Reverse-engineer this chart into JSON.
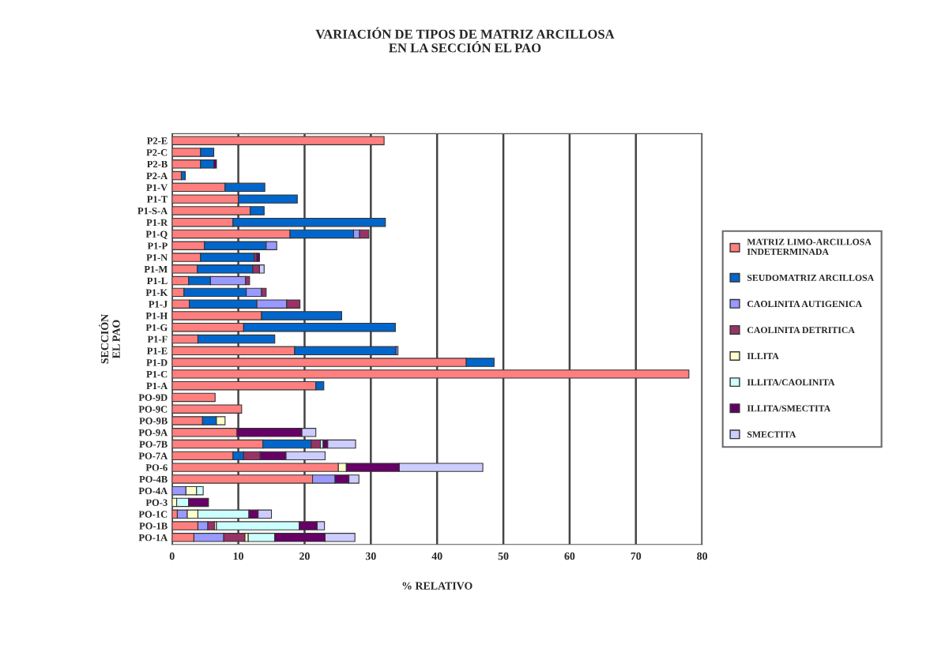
{
  "chart_data": {
    "type": "bar",
    "orientation": "horizontal",
    "stacked": true,
    "title": "VARIACIÓN DE TIPOS DE MATRIZ ARCILLOSA\nEN LA SECCIÓN EL PAO",
    "xlabel": "% RELATIVO",
    "ylabel": "SECCIÓN\nEL PAO",
    "categories": [
      "P2-E",
      "P2-C",
      "P2-B",
      "P2-A",
      "P1-V",
      "P1-T",
      "P1-S-A",
      "P1-R",
      "P1-Q",
      "P1-P",
      "P1-N",
      "P1-M",
      "P1-L",
      "P1-K",
      "P1-J",
      "P1-H",
      "P1-G",
      "P1-F",
      "P1-E",
      "P1-D",
      "P1-C",
      "P1-A",
      "PO-9D",
      "PO-9C",
      "PO-9B",
      "PO-9A",
      "PO-7B",
      "PO-7A",
      "PO-6",
      "PO-4B",
      "PO-4A",
      "PO-3",
      "PO-1C",
      "PO-1B",
      "PO-1A"
    ],
    "xlim": [
      0,
      80
    ],
    "xticks": [
      0,
      10,
      20,
      30,
      40,
      50,
      60,
      70,
      80
    ],
    "grid": "x",
    "legend": "right",
    "series": [
      {
        "name": "MATRIZ LIMO-ARCILLOSA\nINDETERMINADA",
        "color": "#ff7f7f",
        "values": [
          32,
          4.3,
          4.3,
          1.4,
          8.0,
          10.0,
          11.8,
          9.2,
          17.8,
          4.9,
          4.3,
          3.8,
          2.5,
          1.8,
          2.6,
          13.5,
          10.8,
          3.9,
          18.5,
          44.4,
          78.0,
          21.7,
          6.5,
          10.5,
          4.6,
          9.8,
          13.7,
          9.2,
          25.1,
          21.2,
          null,
          null,
          0.8,
          3.9,
          3.3
        ]
      },
      {
        "name": "SEUDOMATRIZ ARCILLOSA",
        "color": "#0066cc",
        "values": [
          null,
          2.0,
          2.0,
          0.6,
          6.0,
          8.9,
          2.1,
          23.0,
          9.6,
          9.3,
          8.1,
          8.4,
          3.3,
          9.4,
          10.2,
          12.1,
          22.9,
          11.6,
          15.3,
          4.2,
          null,
          1.2,
          null,
          null,
          2.1,
          null,
          7.3,
          1.6,
          null,
          null,
          null,
          null,
          null,
          null,
          null
        ]
      },
      {
        "name": "CAOLINITA AUTIGENICA",
        "color": "#9999ff",
        "values": [
          null,
          null,
          null,
          null,
          null,
          null,
          null,
          null,
          0.9,
          1.6,
          null,
          null,
          5.3,
          2.3,
          4.5,
          null,
          null,
          null,
          0.3,
          null,
          null,
          null,
          null,
          null,
          null,
          null,
          null,
          null,
          null,
          3.4,
          2.1,
          null,
          1.5,
          1.5,
          4.5
        ]
      },
      {
        "name": "CAOLINITA DETRITICA",
        "color": "#993366",
        "values": [
          null,
          null,
          null,
          null,
          null,
          null,
          null,
          null,
          1.4,
          null,
          0.4,
          1.0,
          0.6,
          0.7,
          2.0,
          null,
          null,
          null,
          null,
          null,
          null,
          null,
          null,
          null,
          null,
          null,
          1.4,
          2.5,
          null,
          null,
          null,
          null,
          null,
          1.0,
          3.2
        ]
      },
      {
        "name": "ILLITA",
        "color": "#ffffcc",
        "values": [
          null,
          null,
          null,
          null,
          null,
          null,
          null,
          null,
          null,
          null,
          null,
          null,
          null,
          null,
          null,
          null,
          null,
          null,
          null,
          null,
          null,
          null,
          null,
          null,
          1.3,
          null,
          null,
          null,
          1.2,
          null,
          1.6,
          0.7,
          1.6,
          0.3,
          0.5
        ]
      },
      {
        "name": "ILLITA/CAOLINITA",
        "color": "#ccffff",
        "values": [
          null,
          null,
          null,
          null,
          null,
          null,
          null,
          null,
          null,
          null,
          null,
          null,
          null,
          null,
          null,
          null,
          null,
          null,
          null,
          null,
          null,
          null,
          null,
          null,
          null,
          null,
          0.4,
          null,
          null,
          null,
          1.0,
          1.8,
          7.7,
          12.5,
          4.0
        ]
      },
      {
        "name": "ILLITA/SMECTITA",
        "color": "#660066",
        "values": [
          null,
          null,
          0.4,
          null,
          null,
          null,
          null,
          null,
          null,
          null,
          0.4,
          null,
          null,
          null,
          null,
          null,
          null,
          null,
          null,
          null,
          null,
          null,
          null,
          null,
          null,
          9.8,
          0.7,
          3.9,
          8.0,
          2.1,
          null,
          3.0,
          1.4,
          2.7,
          7.6
        ]
      },
      {
        "name": "SMECTITA",
        "color": "#ccccff",
        "values": [
          null,
          null,
          null,
          null,
          null,
          null,
          null,
          null,
          null,
          null,
          null,
          0.7,
          null,
          null,
          null,
          null,
          null,
          null,
          null,
          null,
          null,
          null,
          null,
          null,
          null,
          2.1,
          4.2,
          5.9,
          12.6,
          1.5,
          null,
          null,
          2.0,
          1.1,
          4.5
        ]
      }
    ]
  }
}
